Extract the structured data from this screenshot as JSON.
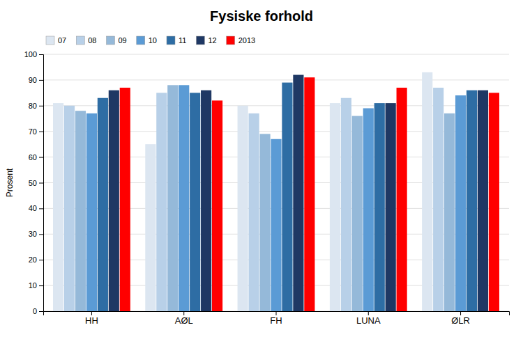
{
  "chart_data": {
    "type": "bar",
    "title": "Fysiske forhold",
    "ylabel": "Prosent",
    "categories": [
      "HH",
      "AØL",
      "FH",
      "LUNA",
      "ØLR"
    ],
    "series": [
      {
        "name": "07",
        "color": "#dce6f1",
        "values": [
          81,
          65,
          80,
          81,
          93
        ]
      },
      {
        "name": "08",
        "color": "#b8d0e8",
        "values": [
          80,
          85,
          77,
          83,
          87
        ]
      },
      {
        "name": "09",
        "color": "#95b9d9",
        "values": [
          78,
          88,
          69,
          76,
          77
        ]
      },
      {
        "name": "10",
        "color": "#5b9bd5",
        "values": [
          77,
          88,
          67,
          79,
          84
        ]
      },
      {
        "name": "11",
        "color": "#2e6da4",
        "values": [
          83,
          85,
          89,
          81,
          86
        ]
      },
      {
        "name": "12",
        "color": "#1f3864",
        "values": [
          86,
          86,
          92,
          81,
          86
        ]
      },
      {
        "name": "2013",
        "color": "#ff0000",
        "values": [
          87,
          82,
          91,
          87,
          85
        ]
      }
    ],
    "ylim": [
      0,
      100
    ],
    "yticks": [
      0,
      10,
      20,
      30,
      40,
      50,
      60,
      70,
      80,
      90,
      100
    ],
    "grid": true,
    "legend": "upper left"
  }
}
